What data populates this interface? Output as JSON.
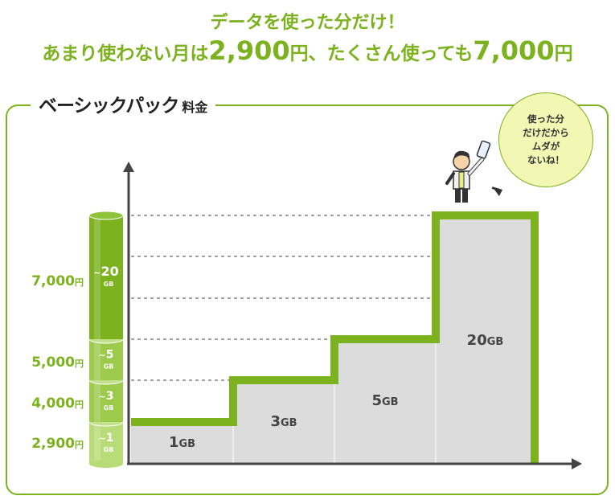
{
  "headline": {
    "line1": "データを使った分だけ！",
    "line2_a": "あまり使わない月は",
    "line2_b": "2,900",
    "line2_c": "円、たくさん使っても",
    "line2_d": "7,000",
    "line2_e": "円"
  },
  "plan": {
    "title": "ベーシックパック",
    "subtitle": "料金"
  },
  "bubble": {
    "text": "使った分\nだけだから\nムダが\nないね！"
  },
  "chart_data": {
    "type": "bar",
    "categories": [
      "1GB",
      "3GB",
      "5GB",
      "20GB"
    ],
    "values": [
      2900,
      4000,
      5000,
      7000
    ],
    "value_labels": [
      "2,900円",
      "4,000円",
      "5,000円",
      "7,000円"
    ],
    "tier_labels": [
      {
        "tilde": "~",
        "num": "1",
        "unit": "GB"
      },
      {
        "tilde": "~",
        "num": "3",
        "unit": "GB"
      },
      {
        "tilde": "~",
        "num": "5",
        "unit": "GB"
      },
      {
        "tilde": "~",
        "num": "20",
        "unit": "GB"
      }
    ],
    "xlabel": "",
    "ylabel": "",
    "ylim": [
      0,
      7000
    ],
    "colors": {
      "accent": "#7bb21e",
      "light": "#a6cf5a",
      "bar_fill": "#dcdcdc",
      "axis": "#444444"
    }
  }
}
